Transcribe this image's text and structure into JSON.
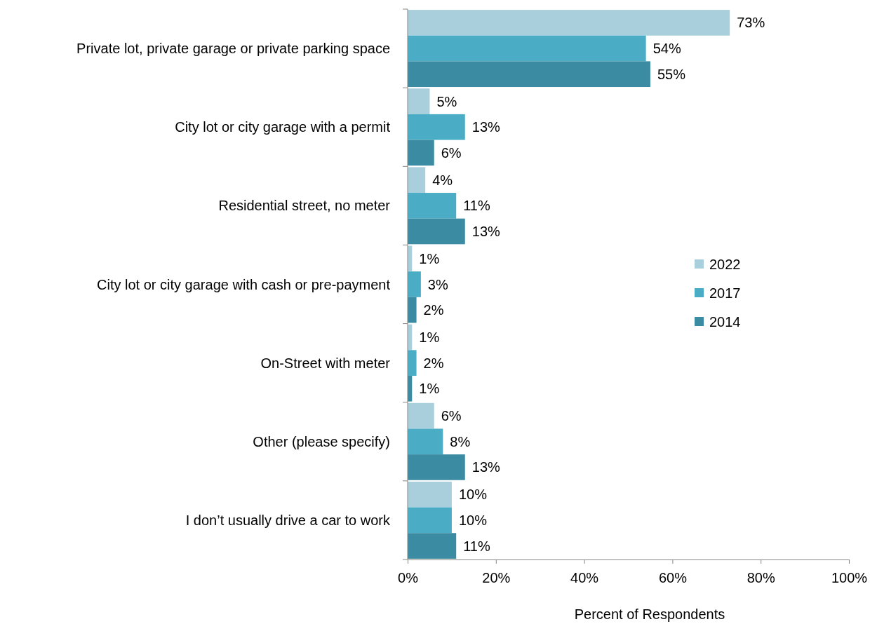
{
  "chart_data": {
    "type": "bar",
    "orientation": "horizontal",
    "xlabel": "Percent of Respondents",
    "categories": [
      "Private lot, private garage or private parking space",
      "City lot or city garage with a permit",
      "Residential street, no meter",
      "City lot or city garage with cash or pre-payment",
      "On-Street with meter",
      "Other (please specify)",
      "I don’t usually drive a car to work"
    ],
    "series": [
      {
        "name": "2022",
        "color": "#a9cfdc",
        "values": [
          73,
          5,
          4,
          1,
          1,
          6,
          10
        ],
        "value_labels": [
          "73%",
          "5%",
          "4%",
          "1%",
          "1%",
          "6%",
          "10%"
        ]
      },
      {
        "name": "2017",
        "color": "#4bacc6",
        "values": [
          54,
          13,
          11,
          3,
          2,
          8,
          10
        ],
        "value_labels": [
          "54%",
          "13%",
          "11%",
          "3%",
          "2%",
          "8%",
          "10%"
        ]
      },
      {
        "name": "2014",
        "color": "#3b8ca3",
        "values": [
          55,
          6,
          13,
          2,
          1,
          13,
          11
        ],
        "value_labels": [
          "55%",
          "6%",
          "13%",
          "2%",
          "1%",
          "13%",
          "11%"
        ]
      }
    ],
    "xlim": [
      0,
      100
    ],
    "xticks": [
      {
        "value": 0,
        "label": "0%"
      },
      {
        "value": 20,
        "label": "20%"
      },
      {
        "value": 40,
        "label": "40%"
      },
      {
        "value": 60,
        "label": "60%"
      },
      {
        "value": 80,
        "label": "80%"
      },
      {
        "value": 100,
        "label": "100%"
      }
    ],
    "legend": "right",
    "grid": false
  }
}
